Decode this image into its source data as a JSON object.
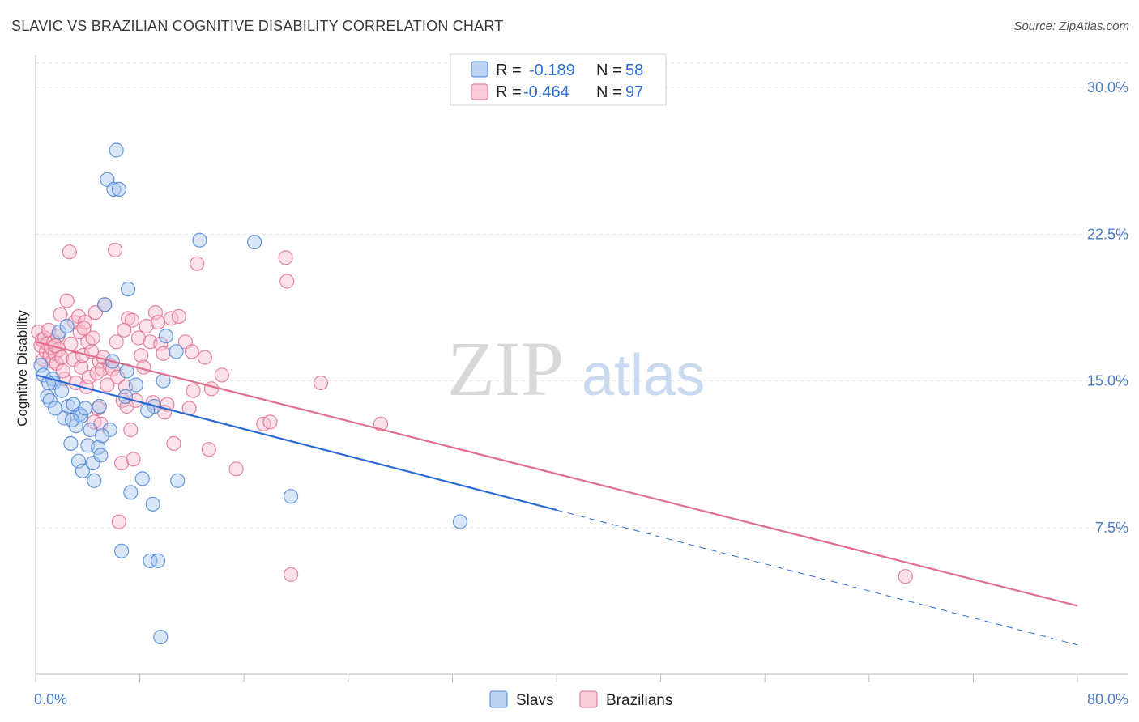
{
  "title": "SLAVIC VS BRAZILIAN COGNITIVE DISABILITY CORRELATION CHART",
  "source": "Source: ZipAtlas.com",
  "watermark": {
    "zip": "ZIP",
    "atlas": "atlas"
  },
  "chart_data": {
    "type": "scatter",
    "title": "SLAVIC VS BRAZILIAN COGNITIVE DISABILITY CORRELATION CHART",
    "xlabel": "",
    "ylabel": "Cognitive Disability",
    "xlim": [
      0,
      80
    ],
    "ylim": [
      0,
      31.5
    ],
    "x_tick_labels": [
      "0.0%",
      "80.0%"
    ],
    "y_ticks": [
      7.5,
      15.0,
      22.5,
      30.0
    ],
    "y_tick_labels": [
      "7.5%",
      "15.0%",
      "22.5%",
      "30.0%"
    ],
    "grid": true,
    "legend": {
      "position": "top-center",
      "entries": [
        {
          "r_label": "R =",
          "r_value": "-0.189",
          "n_label": "N =",
          "n_value": "58"
        },
        {
          "r_label": "R =",
          "r_value": "-0.464",
          "n_label": "N =",
          "n_value": "97"
        }
      ]
    },
    "series": [
      {
        "name": "Slavs",
        "color": "#4a86d6",
        "fill": "#aac8ee",
        "trend": {
          "x_start": 0,
          "y_start": 15.3,
          "x_solid_end": 40,
          "y_solid_end": 8.4,
          "x_end": 80,
          "y_end": 1.5
        },
        "points": [
          [
            0.4,
            15.8
          ],
          [
            0.6,
            15.3
          ],
          [
            0.9,
            14.2
          ],
          [
            1.1,
            14.0
          ],
          [
            1.3,
            15.1
          ],
          [
            1.4,
            14.9
          ],
          [
            1.5,
            13.6
          ],
          [
            1.8,
            17.5
          ],
          [
            2.0,
            14.5
          ],
          [
            2.2,
            13.1
          ],
          [
            2.4,
            17.8
          ],
          [
            2.5,
            13.7
          ],
          [
            2.7,
            11.8
          ],
          [
            2.9,
            13.8
          ],
          [
            3.1,
            12.7
          ],
          [
            3.3,
            10.9
          ],
          [
            3.4,
            13.3
          ],
          [
            3.5,
            13.2
          ],
          [
            3.8,
            13.6
          ],
          [
            4.0,
            11.7
          ],
          [
            4.2,
            12.5
          ],
          [
            4.4,
            10.8
          ],
          [
            4.5,
            9.9
          ],
          [
            4.8,
            11.6
          ],
          [
            4.9,
            13.7
          ],
          [
            5.0,
            11.2
          ],
          [
            5.3,
            18.9
          ],
          [
            5.5,
            25.3
          ],
          [
            5.7,
            12.5
          ],
          [
            5.9,
            16.0
          ],
          [
            6.0,
            24.8
          ],
          [
            6.2,
            26.8
          ],
          [
            6.4,
            24.8
          ],
          [
            6.6,
            6.3
          ],
          [
            6.9,
            14.2
          ],
          [
            7.0,
            15.5
          ],
          [
            7.1,
            19.7
          ],
          [
            7.3,
            9.3
          ],
          [
            7.7,
            14.8
          ],
          [
            8.2,
            10.0
          ],
          [
            8.8,
            5.8
          ],
          [
            9.0,
            8.7
          ],
          [
            9.1,
            13.7
          ],
          [
            9.4,
            5.8
          ],
          [
            9.6,
            1.9
          ],
          [
            9.8,
            15.0
          ],
          [
            10.0,
            17.3
          ],
          [
            10.8,
            16.5
          ],
          [
            10.9,
            9.9
          ],
          [
            12.6,
            22.2
          ],
          [
            16.8,
            22.1
          ],
          [
            19.6,
            9.1
          ],
          [
            32.6,
            7.8
          ],
          [
            1.0,
            14.9
          ],
          [
            2.8,
            13.0
          ],
          [
            8.6,
            13.5
          ],
          [
            5.1,
            12.2
          ],
          [
            3.6,
            10.4
          ]
        ]
      },
      {
        "name": "Brazilians",
        "color": "#e0708f",
        "fill": "#f6bfd0",
        "trend": {
          "x_start": 0,
          "y_start": 17.0,
          "x_end": 80,
          "y_end": 3.5
        },
        "points": [
          [
            0.2,
            17.5
          ],
          [
            0.4,
            16.8
          ],
          [
            0.5,
            17.1
          ],
          [
            0.6,
            16.1
          ],
          [
            0.7,
            17.2
          ],
          [
            0.8,
            16.5
          ],
          [
            0.9,
            16.9
          ],
          [
            1.0,
            17.6
          ],
          [
            1.1,
            16.3
          ],
          [
            1.2,
            16.7
          ],
          [
            1.3,
            16.0
          ],
          [
            1.4,
            17.0
          ],
          [
            1.5,
            16.4
          ],
          [
            1.6,
            15.9
          ],
          [
            1.7,
            17.3
          ],
          [
            1.8,
            16.6
          ],
          [
            1.9,
            18.4
          ],
          [
            2.0,
            16.2
          ],
          [
            2.2,
            15.1
          ],
          [
            2.4,
            19.1
          ],
          [
            2.6,
            21.6
          ],
          [
            2.7,
            16.9
          ],
          [
            2.9,
            16.1
          ],
          [
            3.0,
            18.0
          ],
          [
            3.1,
            14.9
          ],
          [
            3.3,
            18.3
          ],
          [
            3.4,
            17.5
          ],
          [
            3.5,
            15.7
          ],
          [
            3.6,
            16.3
          ],
          [
            3.8,
            18.0
          ],
          [
            3.9,
            14.7
          ],
          [
            4.0,
            17.0
          ],
          [
            4.1,
            15.2
          ],
          [
            4.3,
            16.5
          ],
          [
            4.4,
            17.2
          ],
          [
            4.5,
            12.9
          ],
          [
            4.6,
            18.5
          ],
          [
            4.7,
            15.4
          ],
          [
            4.8,
            13.6
          ],
          [
            4.9,
            16.0
          ],
          [
            5.0,
            12.8
          ],
          [
            5.1,
            15.6
          ],
          [
            5.3,
            18.9
          ],
          [
            5.5,
            14.8
          ],
          [
            5.7,
            15.8
          ],
          [
            5.9,
            15.6
          ],
          [
            6.1,
            21.7
          ],
          [
            6.2,
            17.0
          ],
          [
            6.3,
            15.2
          ],
          [
            6.4,
            7.8
          ],
          [
            6.6,
            10.8
          ],
          [
            6.7,
            14.0
          ],
          [
            6.9,
            14.7
          ],
          [
            7.0,
            13.7
          ],
          [
            7.1,
            18.2
          ],
          [
            7.3,
            12.5
          ],
          [
            7.4,
            18.1
          ],
          [
            7.5,
            11.0
          ],
          [
            7.7,
            14.0
          ],
          [
            7.9,
            17.2
          ],
          [
            8.1,
            16.3
          ],
          [
            8.5,
            17.8
          ],
          [
            8.8,
            17.0
          ],
          [
            9.0,
            13.9
          ],
          [
            9.2,
            18.5
          ],
          [
            9.4,
            18.0
          ],
          [
            9.6,
            16.9
          ],
          [
            9.8,
            16.4
          ],
          [
            10.1,
            13.8
          ],
          [
            10.4,
            18.2
          ],
          [
            10.6,
            11.8
          ],
          [
            11.0,
            18.3
          ],
          [
            11.5,
            17.0
          ],
          [
            11.8,
            13.6
          ],
          [
            12.0,
            16.5
          ],
          [
            12.1,
            14.5
          ],
          [
            12.4,
            21.0
          ],
          [
            13.3,
            11.5
          ],
          [
            13.5,
            14.6
          ],
          [
            14.3,
            15.3
          ],
          [
            15.4,
            10.5
          ],
          [
            17.5,
            12.8
          ],
          [
            18.0,
            12.9
          ],
          [
            19.2,
            21.3
          ],
          [
            19.3,
            20.1
          ],
          [
            19.6,
            5.1
          ],
          [
            21.9,
            14.9
          ],
          [
            26.5,
            12.8
          ],
          [
            66.8,
            5.0
          ],
          [
            1.5,
            16.8
          ],
          [
            2.1,
            15.5
          ],
          [
            3.7,
            17.7
          ],
          [
            5.2,
            16.2
          ],
          [
            6.8,
            17.6
          ],
          [
            8.3,
            15.7
          ],
          [
            9.9,
            13.4
          ],
          [
            13.0,
            16.2
          ]
        ]
      }
    ]
  }
}
